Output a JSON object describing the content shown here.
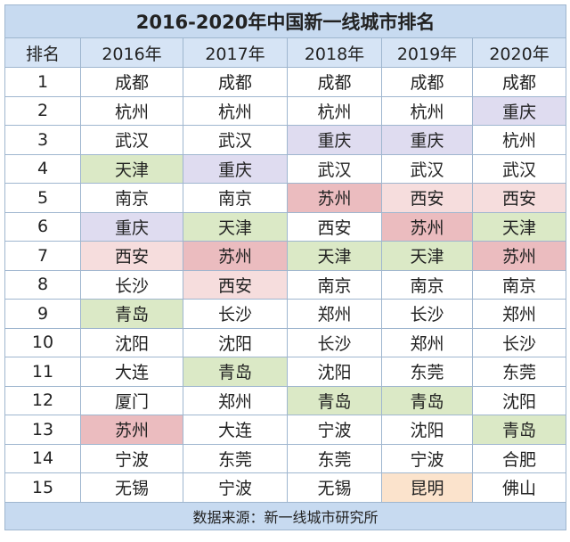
{
  "title": "2016-2020年中国新一线城市排名",
  "header": [
    "排名",
    "2016年",
    "2017年",
    "2018年",
    "2019年",
    "2020年"
  ],
  "rows": [
    [
      "1",
      "成都",
      "成都",
      "成都",
      "成都",
      "成都"
    ],
    [
      "2",
      "杭州",
      "杭州",
      "杭州",
      "杭州",
      {
        "text": "重庆",
        "color": "#dfdcf0"
      }
    ],
    [
      "3",
      "武汉",
      "武汉",
      {
        "text": "重庆",
        "color": "#dfdcf0"
      },
      {
        "text": "重庆",
        "color": "#dfdcf0"
      },
      "杭州"
    ],
    [
      "4",
      {
        "text": "天津",
        "color": "#dbe9c6"
      },
      {
        "text": "重庆",
        "color": "#dfdcf0"
      },
      "武汉",
      "武汉",
      "武汉"
    ],
    [
      "5",
      "南京",
      "南京",
      {
        "text": "苏州",
        "color": "#ebbcbf"
      },
      {
        "text": "西安",
        "color": "#f6dddd"
      },
      {
        "text": "西安",
        "color": "#f6dddd"
      }
    ],
    [
      "6",
      {
        "text": "重庆",
        "color": "#dfdcf0"
      },
      {
        "text": "天津",
        "color": "#dbe9c6"
      },
      "西安",
      {
        "text": "苏州",
        "color": "#ebbcbf"
      },
      {
        "text": "天津",
        "color": "#dbe9c6"
      }
    ],
    [
      "7",
      {
        "text": "西安",
        "color": "#f6dddd"
      },
      {
        "text": "苏州",
        "color": "#ebbcbf"
      },
      {
        "text": "天津",
        "color": "#dbe9c6"
      },
      {
        "text": "天津",
        "color": "#dbe9c6"
      },
      {
        "text": "苏州",
        "color": "#ebbcbf"
      }
    ],
    [
      "8",
      "长沙",
      {
        "text": "西安",
        "color": "#f6dddd"
      },
      "南京",
      "南京",
      "南京"
    ],
    [
      "9",
      {
        "text": "青岛",
        "color": "#dbe9c6"
      },
      "长沙",
      "郑州",
      "长沙",
      "郑州"
    ],
    [
      "10",
      "沈阳",
      "沈阳",
      "长沙",
      "郑州",
      "长沙"
    ],
    [
      "11",
      "大连",
      {
        "text": "青岛",
        "color": "#dbe9c6"
      },
      "沈阳",
      "东莞",
      "东莞"
    ],
    [
      "12",
      "厦门",
      "郑州",
      {
        "text": "青岛",
        "color": "#dbe9c6"
      },
      {
        "text": "青岛",
        "color": "#dbe9c6"
      },
      "沈阳"
    ],
    [
      "13",
      {
        "text": "苏州",
        "color": "#ebbcbf"
      },
      "大连",
      "宁波",
      "沈阳",
      {
        "text": "青岛",
        "color": "#dbe9c6"
      }
    ],
    [
      "14",
      "宁波",
      "东莞",
      "东莞",
      "宁波",
      "合肥"
    ],
    [
      "15",
      "无锡",
      "宁波",
      "无锡",
      {
        "text": "昆明",
        "color": "#fbe3cc"
      },
      "佛山"
    ]
  ],
  "footer": "数据来源：新一线城市研究所"
}
